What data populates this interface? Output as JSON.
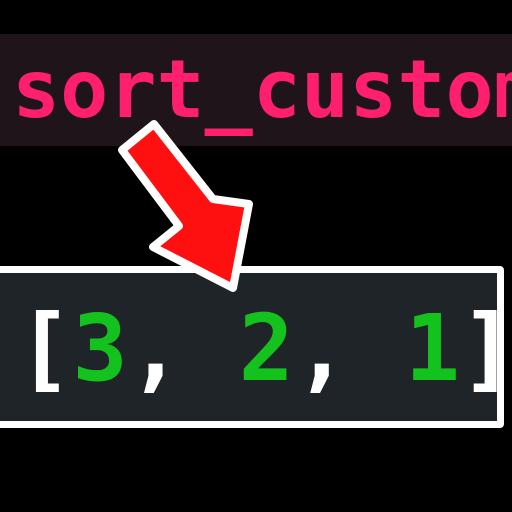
{
  "title": {
    "text": "sort_custom",
    "color": "#ff1f6e",
    "background": "#1e1419"
  },
  "arrow": {
    "color": "#ff1010",
    "outline": "#ffffff",
    "icon": "arrow-down-right-icon"
  },
  "output": {
    "open_bracket": "[",
    "close_bracket": "]",
    "separator": ",",
    "items": [
      "3",
      "2",
      "1"
    ],
    "number_color": "#14c21e",
    "bracket_color": "#ffffff",
    "box_background": "#1f2428"
  }
}
